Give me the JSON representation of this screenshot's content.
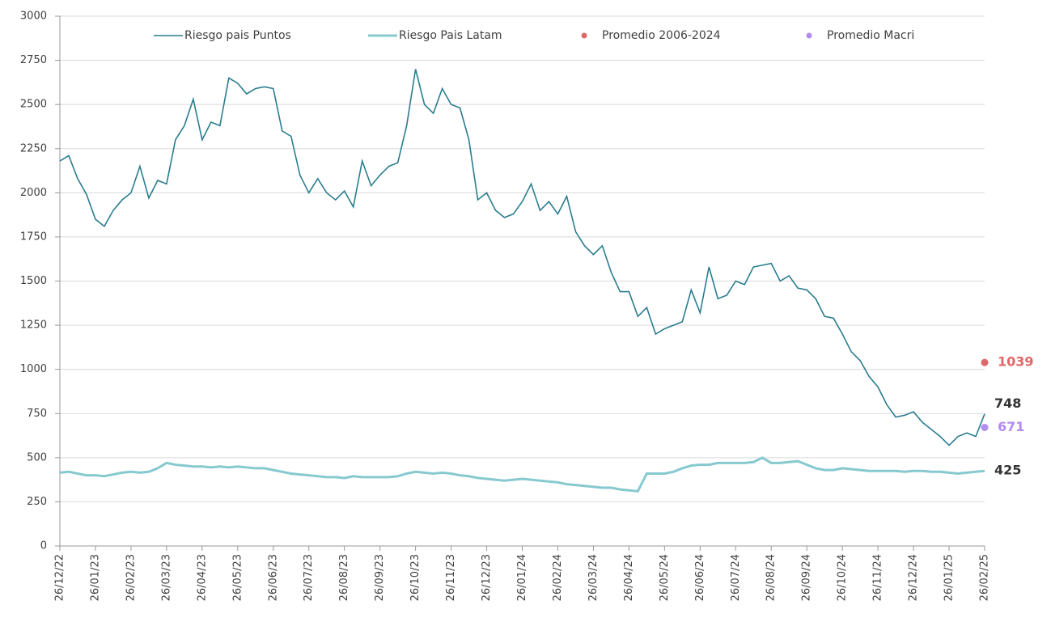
{
  "chart_data": {
    "type": "line",
    "categories": [
      "26/12/22",
      null,
      null,
      null,
      "26/01/23",
      null,
      null,
      null,
      "26/02/23",
      null,
      null,
      null,
      "26/03/23",
      null,
      null,
      null,
      "26/04/23",
      null,
      null,
      null,
      "26/05/23",
      null,
      null,
      null,
      "26/06/23",
      null,
      null,
      null,
      "26/07/23",
      null,
      null,
      null,
      "26/08/23",
      null,
      null,
      null,
      "26/09/23",
      null,
      null,
      null,
      "26/10/23",
      null,
      null,
      null,
      "26/11/23",
      null,
      null,
      null,
      "26/12/23",
      null,
      null,
      null,
      "26/01/24",
      null,
      null,
      null,
      "26/02/24",
      null,
      null,
      null,
      "26/03/24",
      null,
      null,
      null,
      "26/04/24",
      null,
      null,
      null,
      "26/05/24",
      null,
      null,
      null,
      "26/06/24",
      null,
      null,
      null,
      "26/07/24",
      null,
      null,
      null,
      "26/08/24",
      null,
      null,
      null,
      "26/09/24",
      null,
      null,
      null,
      "26/10/24",
      null,
      null,
      null,
      "26/11/24",
      null,
      null,
      null,
      "26/12/24",
      null,
      null,
      null,
      "26/01/25",
      null,
      null,
      null,
      "26/02/25"
    ],
    "series": [
      {
        "name": "Riesgo pais Puntos",
        "color": "#2a7d8e",
        "values": [
          2180,
          2210,
          2080,
          1990,
          1850,
          1810,
          1900,
          1960,
          2000,
          2150,
          1970,
          2070,
          2050,
          2300,
          2380,
          2530,
          2300,
          2400,
          2380,
          2650,
          2620,
          2560,
          2590,
          2600,
          2590,
          2350,
          2320,
          2100,
          2000,
          2080,
          2000,
          1960,
          2010,
          1920,
          2180,
          2040,
          2100,
          2150,
          2170,
          2380,
          2700,
          2500,
          2450,
          2590,
          2500,
          2480,
          2300,
          1960,
          2000,
          1900,
          1860,
          1880,
          1950,
          2050,
          1900,
          1950,
          1880,
          1980,
          1780,
          1700,
          1650,
          1700,
          1550,
          1440,
          1440,
          1300,
          1350,
          1200,
          1230,
          1250,
          1270,
          1450,
          1320,
          1580,
          1400,
          1420,
          1500,
          1480,
          1580,
          1590,
          1600,
          1500,
          1530,
          1460,
          1450,
          1400,
          1300,
          1290,
          1200,
          1100,
          1050,
          960,
          900,
          800,
          730,
          740,
          760,
          700,
          660,
          620,
          570,
          620,
          640,
          620,
          748
        ]
      },
      {
        "name": "Riesgo Pais Latam",
        "color": "#86c9cf",
        "values": [
          415,
          420,
          410,
          400,
          400,
          395,
          405,
          415,
          420,
          415,
          420,
          440,
          470,
          460,
          455,
          450,
          450,
          445,
          450,
          445,
          450,
          445,
          440,
          440,
          430,
          420,
          410,
          405,
          400,
          395,
          390,
          390,
          385,
          395,
          390,
          390,
          390,
          390,
          395,
          410,
          420,
          415,
          410,
          415,
          410,
          400,
          395,
          385,
          380,
          375,
          370,
          375,
          380,
          375,
          370,
          365,
          360,
          350,
          345,
          340,
          335,
          330,
          330,
          320,
          315,
          310,
          410,
          410,
          410,
          420,
          440,
          455,
          460,
          460,
          470,
          470,
          470,
          470,
          475,
          500,
          470,
          470,
          475,
          480,
          460,
          440,
          430,
          430,
          440,
          435,
          430,
          425,
          425,
          425,
          425,
          420,
          425,
          425,
          420,
          420,
          415,
          410,
          415,
          420,
          425
        ]
      },
      {
        "name": "Promedio 2006-2024",
        "color": "#e06868",
        "type": "scatter",
        "x": [
          "26/02/25"
        ],
        "values": [
          1039
        ]
      },
      {
        "name": "Promedio Macri",
        "color": "#b28cf0",
        "type": "scatter",
        "x": [
          "26/02/25"
        ],
        "values": [
          671
        ]
      }
    ],
    "ylim": [
      0,
      3000
    ],
    "yticks": [
      0,
      250,
      500,
      750,
      1000,
      1250,
      1500,
      1750,
      2000,
      2250,
      2500,
      2750,
      3000
    ],
    "grid": true
  }
}
